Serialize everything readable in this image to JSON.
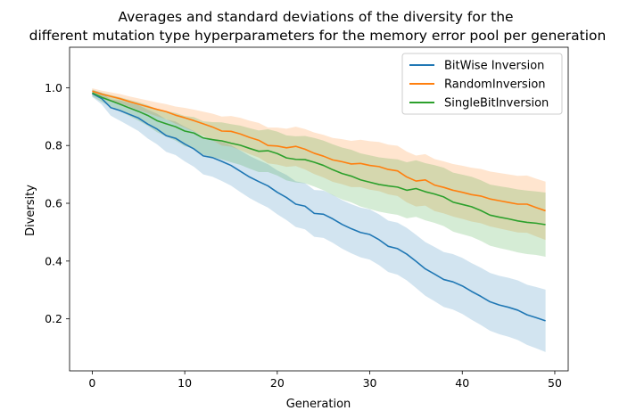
{
  "chart_data": {
    "type": "line",
    "title_lines": [
      "Averages and standard deviations of the diversity for the",
      "different mutation type hyperparameters for the memory error pool per generation"
    ],
    "xlabel": "Generation",
    "ylabel": "Diversity",
    "xlim": [
      -2.45,
      51.45
    ],
    "ylim": [
      0.02,
      1.14
    ],
    "xticks": [
      0,
      10,
      20,
      30,
      40,
      50
    ],
    "yticks": [
      0.2,
      0.4,
      0.6,
      0.8,
      1.0
    ],
    "xtick_labels": [
      "0",
      "10",
      "20",
      "30",
      "40",
      "50"
    ],
    "ytick_labels": [
      "0.2",
      "0.4",
      "0.6",
      "0.8",
      "1.0"
    ],
    "legend_position": "top-right",
    "grid": false,
    "series": [
      {
        "name": "BitWise Inversion",
        "color": "#1f77b4",
        "mean": [
          0.98,
          0.963,
          0.931,
          0.921,
          0.908,
          0.895,
          0.874,
          0.857,
          0.834,
          0.825,
          0.805,
          0.788,
          0.764,
          0.758,
          0.745,
          0.731,
          0.711,
          0.691,
          0.675,
          0.66,
          0.638,
          0.62,
          0.597,
          0.59,
          0.565,
          0.562,
          0.546,
          0.527,
          0.512,
          0.499,
          0.492,
          0.474,
          0.451,
          0.443,
          0.424,
          0.399,
          0.373,
          0.355,
          0.336,
          0.328,
          0.314,
          0.295,
          0.278,
          0.259,
          0.248,
          0.24,
          0.23,
          0.214,
          0.204,
          0.193
        ],
        "std": [
          0.012,
          0.02,
          0.028,
          0.035,
          0.04,
          0.045,
          0.05,
          0.053,
          0.056,
          0.058,
          0.06,
          0.062,
          0.064,
          0.066,
          0.068,
          0.07,
          0.072,
          0.073,
          0.074,
          0.075,
          0.076,
          0.078,
          0.079,
          0.08,
          0.081,
          0.082,
          0.083,
          0.084,
          0.085,
          0.086,
          0.087,
          0.088,
          0.089,
          0.09,
          0.091,
          0.092,
          0.093,
          0.094,
          0.095,
          0.096,
          0.097,
          0.098,
          0.099,
          0.1,
          0.101,
          0.102,
          0.103,
          0.104,
          0.106,
          0.108
        ]
      },
      {
        "name": "RandomInversion",
        "color": "#ff7f0e",
        "mean": [
          0.988,
          0.978,
          0.97,
          0.962,
          0.952,
          0.943,
          0.934,
          0.925,
          0.917,
          0.905,
          0.896,
          0.886,
          0.875,
          0.864,
          0.85,
          0.849,
          0.84,
          0.828,
          0.818,
          0.8,
          0.798,
          0.792,
          0.797,
          0.787,
          0.773,
          0.763,
          0.75,
          0.744,
          0.736,
          0.738,
          0.731,
          0.727,
          0.717,
          0.712,
          0.691,
          0.677,
          0.681,
          0.663,
          0.655,
          0.645,
          0.638,
          0.63,
          0.625,
          0.615,
          0.609,
          0.603,
          0.597,
          0.597,
          0.585,
          0.574
        ],
        "std": [
          0.01,
          0.012,
          0.014,
          0.016,
          0.018,
          0.02,
          0.022,
          0.024,
          0.026,
          0.03,
          0.034,
          0.038,
          0.042,
          0.046,
          0.05,
          0.053,
          0.056,
          0.058,
          0.06,
          0.062,
          0.064,
          0.066,
          0.068,
          0.07,
          0.072,
          0.074,
          0.076,
          0.078,
          0.08,
          0.082,
          0.084,
          0.085,
          0.086,
          0.087,
          0.088,
          0.088,
          0.089,
          0.09,
          0.09,
          0.091,
          0.092,
          0.093,
          0.094,
          0.095,
          0.096,
          0.097,
          0.098,
          0.099,
          0.1,
          0.101
        ]
      },
      {
        "name": "SingleBitInversion",
        "color": "#2ca02c",
        "mean": [
          0.982,
          0.967,
          0.955,
          0.943,
          0.93,
          0.918,
          0.904,
          0.886,
          0.875,
          0.865,
          0.85,
          0.843,
          0.826,
          0.82,
          0.816,
          0.808,
          0.801,
          0.79,
          0.78,
          0.782,
          0.772,
          0.757,
          0.752,
          0.751,
          0.742,
          0.731,
          0.716,
          0.703,
          0.694,
          0.681,
          0.673,
          0.665,
          0.66,
          0.656,
          0.645,
          0.651,
          0.64,
          0.632,
          0.622,
          0.604,
          0.596,
          0.588,
          0.575,
          0.559,
          0.552,
          0.546,
          0.539,
          0.534,
          0.531,
          0.526
        ],
        "std": [
          0.012,
          0.016,
          0.02,
          0.024,
          0.028,
          0.032,
          0.036,
          0.04,
          0.044,
          0.048,
          0.052,
          0.055,
          0.058,
          0.061,
          0.064,
          0.066,
          0.068,
          0.07,
          0.072,
          0.074,
          0.076,
          0.078,
          0.08,
          0.082,
          0.084,
          0.086,
          0.088,
          0.09,
          0.091,
          0.092,
          0.093,
          0.094,
          0.095,
          0.096,
          0.097,
          0.098,
          0.099,
          0.1,
          0.101,
          0.102,
          0.103,
          0.104,
          0.105,
          0.106,
          0.107,
          0.108,
          0.109,
          0.11,
          0.11,
          0.111
        ]
      }
    ]
  }
}
